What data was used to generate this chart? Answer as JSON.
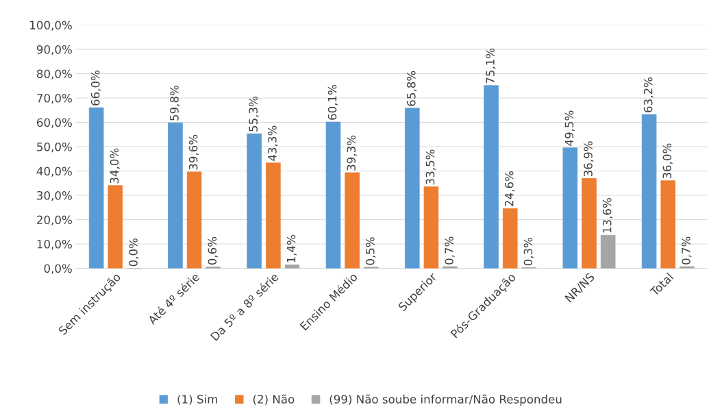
{
  "chart_data": {
    "type": "bar",
    "categories": [
      "Sem instrução",
      "Até 4º série",
      "Da 5º a 8º série",
      "Ensino Médio",
      "Superior",
      "Pós-Graduação",
      "NR/NS",
      "Total"
    ],
    "series": [
      {
        "name": "(1) Sim",
        "color": "#5b9bd5",
        "values": [
          66.0,
          59.8,
          55.3,
          60.1,
          65.8,
          75.1,
          49.5,
          63.2
        ],
        "value_labels": [
          "66,0%",
          "59,8%",
          "55,3%",
          "60,1%",
          "65,8%",
          "75,1%",
          "49,5%",
          "63,2%"
        ]
      },
      {
        "name": "(2) Não",
        "color": "#ed7d31",
        "values": [
          34.0,
          39.6,
          43.3,
          39.3,
          33.5,
          24.6,
          36.9,
          36.0
        ],
        "value_labels": [
          "34,0%",
          "39,6%",
          "43,3%",
          "39,3%",
          "33,5%",
          "24,6%",
          "36,9%",
          "36,0%"
        ]
      },
      {
        "name": "(99) Não soube informar/Não Respondeu",
        "color": "#a5a5a5",
        "values": [
          0.0,
          0.6,
          1.4,
          0.5,
          0.7,
          0.3,
          13.6,
          0.7
        ],
        "value_labels": [
          "0,0%",
          "0,6%",
          "1,4%",
          "0,5%",
          "0,7%",
          "0,3%",
          "13,6%",
          "0,7%"
        ]
      }
    ],
    "ylim": [
      0,
      100
    ],
    "yticks": [
      {
        "value": 0,
        "label": "0,0%"
      },
      {
        "value": 10,
        "label": "10,0%"
      },
      {
        "value": 20,
        "label": "20,0%"
      },
      {
        "value": 30,
        "label": "30,0%"
      },
      {
        "value": 40,
        "label": "40,0%"
      },
      {
        "value": 50,
        "label": "50,0%"
      },
      {
        "value": 60,
        "label": "60,0%"
      },
      {
        "value": 70,
        "label": "70,0%"
      },
      {
        "value": 80,
        "label": "80,0%"
      },
      {
        "value": 90,
        "label": "90,0%"
      },
      {
        "value": 100,
        "label": "100,0%"
      }
    ],
    "grid": "y",
    "legend": "bottom"
  }
}
